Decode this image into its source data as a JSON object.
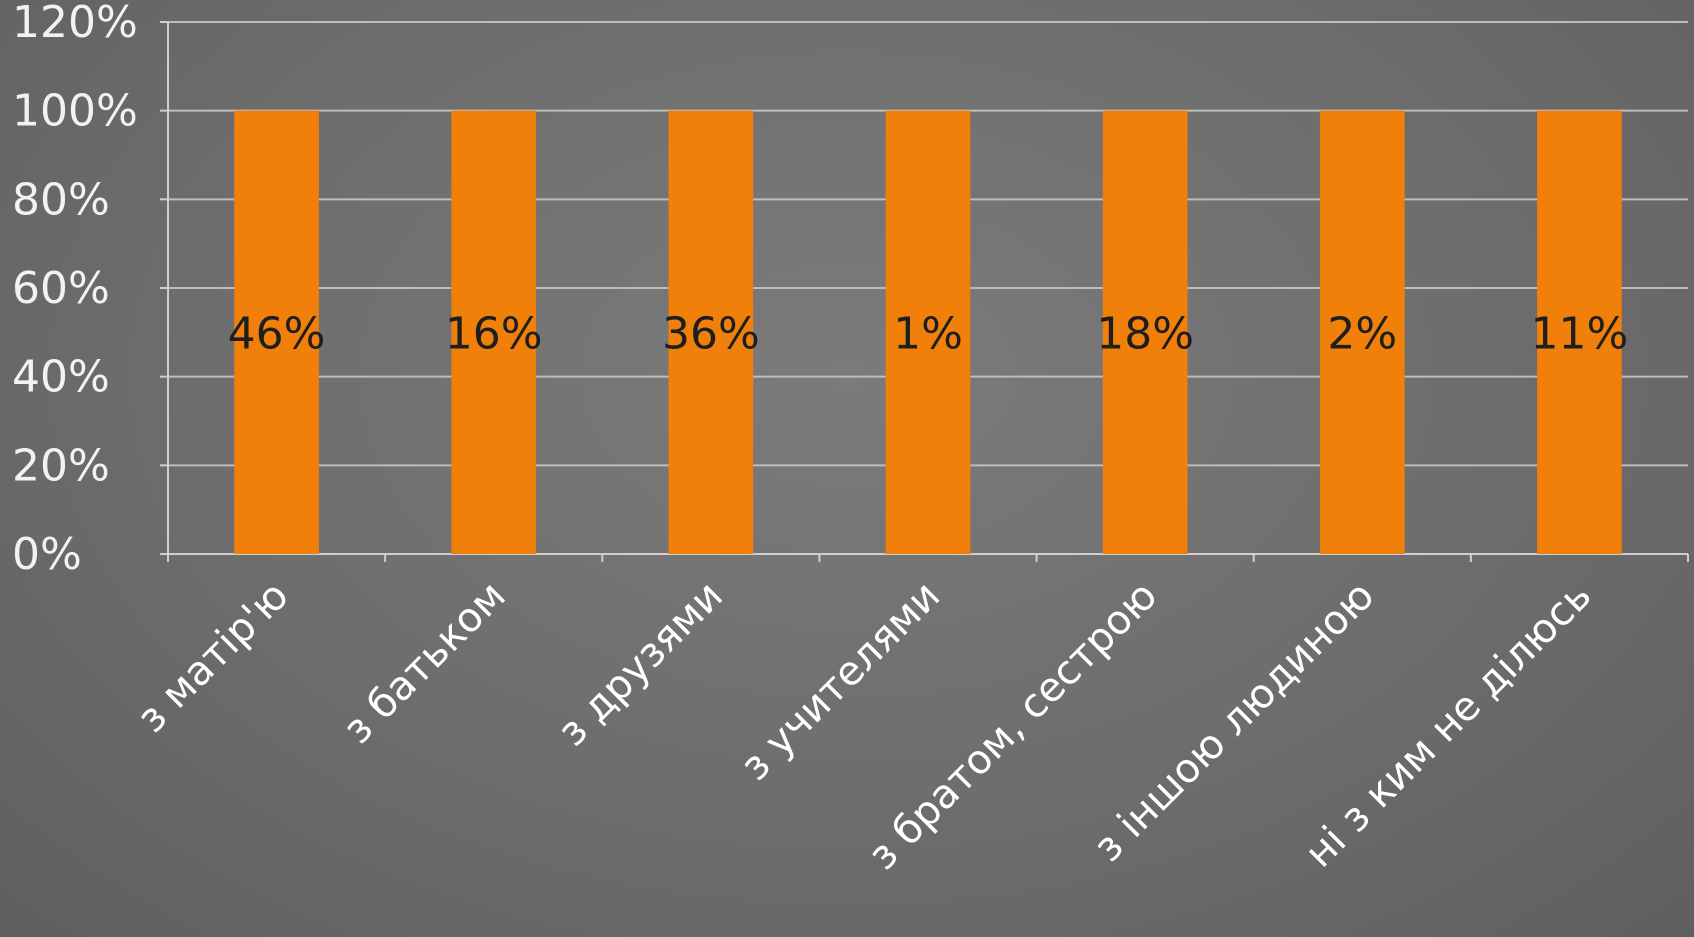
{
  "chart_data": {
    "type": "bar",
    "stacked": "100%",
    "categories": [
      "з матір'ю",
      "з батьком",
      "з друзями",
      "з учителями",
      "з братом, сестрою",
      "з іншою людиною",
      "ні з ким не ділюсь"
    ],
    "values": [
      46,
      16,
      36,
      1,
      18,
      2,
      11
    ],
    "data_labels": [
      "46%",
      "16%",
      "36%",
      "1%",
      "18%",
      "2%",
      "11%"
    ],
    "bar_fill_percent": 100,
    "y_ticks": [
      "0%",
      "20%",
      "40%",
      "60%",
      "80%",
      "100%",
      "120%"
    ],
    "ylim": [
      0,
      120
    ],
    "grid": true,
    "legend": "none",
    "bar_color": "#f08009",
    "text_color": "#ffffff",
    "data_label_color": "#1e1e1e",
    "background_color": "#6e6e6e",
    "title": "",
    "xlabel": "",
    "ylabel": ""
  }
}
